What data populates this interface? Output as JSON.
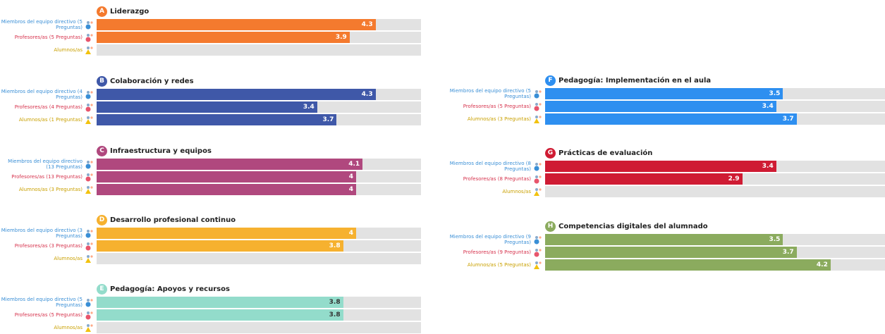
{
  "chart_data": [
    {
      "type": "bar",
      "letter": "A",
      "title": "Liderazgo",
      "color": "#f47a2e",
      "xlim": [
        0,
        5
      ],
      "categories": [
        "Miembros del equipo directivo (5 Preguntas)",
        "Profesores/as (5 Preguntas)",
        "Alumnos/as"
      ],
      "values": [
        4.3,
        3.9,
        null
      ]
    },
    {
      "type": "bar",
      "letter": "B",
      "title": "Colaboración y redes",
      "color": "#3f58a8",
      "xlim": [
        0,
        5
      ],
      "categories": [
        "Miembros del equipo directivo (4 Preguntas)",
        "Profesores/as (4 Preguntas)",
        "Alumnos/as (1 Preguntas)"
      ],
      "values": [
        4.3,
        3.4,
        3.7
      ]
    },
    {
      "type": "bar",
      "letter": "C",
      "title": "Infraestructura y equipos",
      "color": "#b0487e",
      "xlim": [
        0,
        5
      ],
      "categories": [
        "Miembros del equipo directivo (13 Preguntas)",
        "Profesores/as (13 Preguntas)",
        "Alumnos/as (3 Preguntas)"
      ],
      "values": [
        4.1,
        4,
        4
      ]
    },
    {
      "type": "bar",
      "letter": "D",
      "title": "Desarrollo profesional continuo",
      "color": "#f6b12f",
      "xlim": [
        0,
        5
      ],
      "categories": [
        "Miembros del equipo directivo (3 Preguntas)",
        "Profesores/as (3 Preguntas)",
        "Alumnos/as"
      ],
      "values": [
        4,
        3.8,
        null
      ]
    },
    {
      "type": "bar",
      "letter": "E",
      "title": "Pedagogía: Apoyos y recursos",
      "color": "#93dccb",
      "xlim": [
        0,
        5
      ],
      "categories": [
        "Miembros del equipo directivo (5 Preguntas)",
        "Profesores/as (5 Preguntas)",
        "Alumnos/as"
      ],
      "values": [
        3.8,
        3.8,
        null
      ]
    },
    {
      "type": "bar",
      "letter": "F",
      "title": "Pedagogía: Implementación en el aula",
      "color": "#2e8ff0",
      "xlim": [
        0,
        5
      ],
      "categories": [
        "Miembros del equipo directivo (5 Preguntas)",
        "Profesores/as (5 Preguntas)",
        "Alumnos/as (3 Preguntas)"
      ],
      "values": [
        3.5,
        3.4,
        3.7
      ]
    },
    {
      "type": "bar",
      "letter": "G",
      "title": "Prácticas de evaluación",
      "color": "#cf1b33",
      "xlim": [
        0,
        5
      ],
      "categories": [
        "Miembros del equipo directivo (8 Preguntas)",
        "Profesores/as (8 Preguntas)",
        "Alumnos/as"
      ],
      "values": [
        3.4,
        2.9,
        null
      ]
    },
    {
      "type": "bar",
      "letter": "H",
      "title": "Competencias digitales del alumnado",
      "color": "#8bab5e",
      "xlim": [
        0,
        5
      ],
      "categories": [
        "Miembros del equipo directivo (9 Preguntas)",
        "Profesores/as (9 Preguntas)",
        "Alumnos/as (5 Preguntas)"
      ],
      "values": [
        3.5,
        3.7,
        4.2
      ]
    }
  ]
}
